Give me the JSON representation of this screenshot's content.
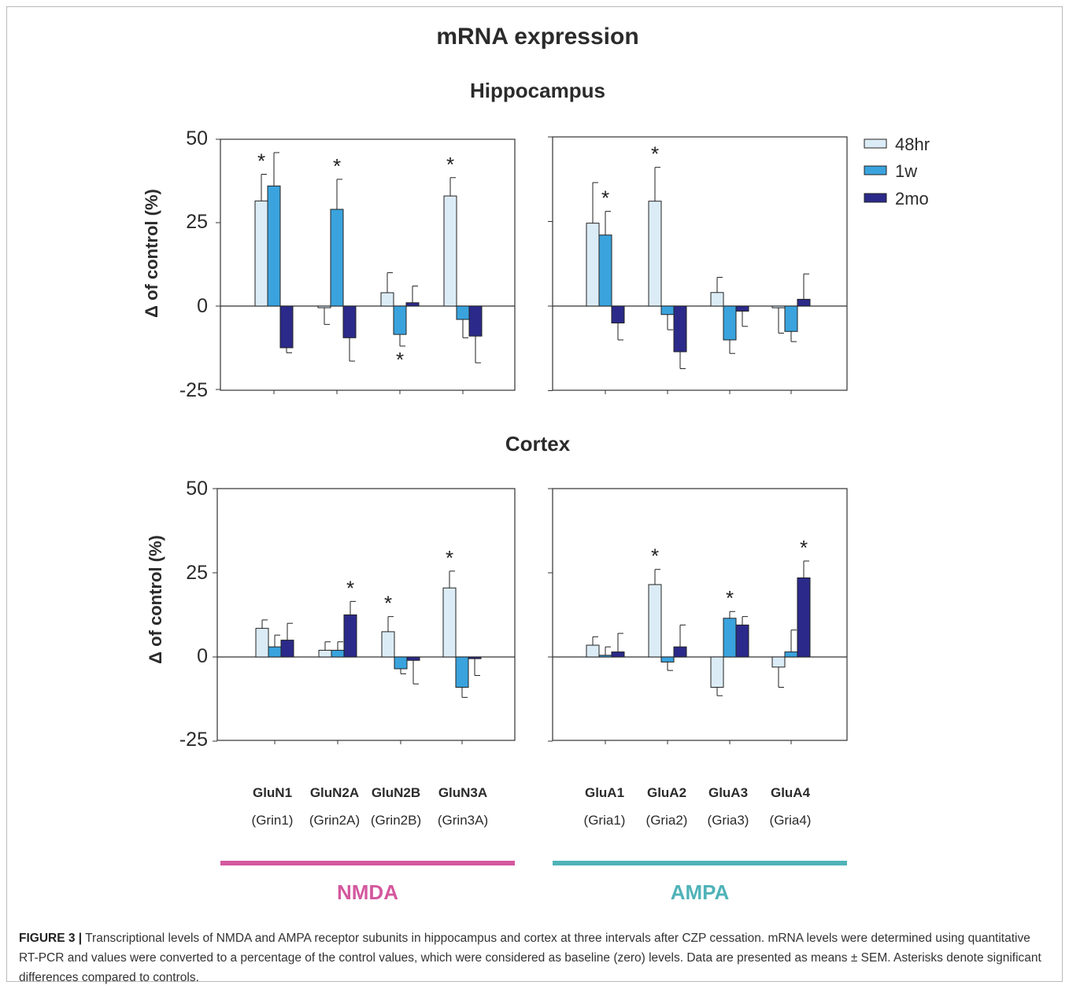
{
  "figure": {
    "title": "mRNA expression",
    "caption_label": "FIGURE 3 |",
    "caption_text": " Transcriptional levels of NMDA and AMPA receptor subunits in hippocampus and cortex at three intervals after CZP cessation. mRNA levels were determined using quantitative RT-PCR and values were converted to a percentage of the control values, which were considered as baseline (zero) levels. Data are presented as means ± SEM. Asterisks denote significant differences compared to controls.",
    "colors": {
      "48hr": "#dcecf7",
      "1w": "#3aa3dd",
      "2mo": "#2b2a8a",
      "nmda": "#d4589e",
      "ampa": "#4fb3b8"
    },
    "groups": [
      {
        "label": "NMDA",
        "color": "#d4589e"
      },
      {
        "label": "AMPA",
        "color": "#4fb3b8"
      }
    ]
  },
  "chart_data": {
    "type": "bar",
    "ylabel": "Δ of control (%)",
    "ylim": [
      -25,
      50
    ],
    "yticks": [
      "50",
      "25",
      "0",
      "-25"
    ],
    "series_names": [
      "48hr",
      "1w",
      "2mo"
    ],
    "legend_position": "top-right",
    "categories_nmda": [
      {
        "name": "GluN1",
        "gene": "(Grin1)"
      },
      {
        "name": "GluN2A",
        "gene": "(Grin2A)"
      },
      {
        "name": "GluN2B",
        "gene": "(Grin2B)"
      },
      {
        "name": "GluN3A",
        "gene": "(Grin3A)"
      }
    ],
    "categories_ampa": [
      {
        "name": "GluA1",
        "gene": "(Gria1)"
      },
      {
        "name": "GluA2",
        "gene": "(Gria2)"
      },
      {
        "name": "GluA3",
        "gene": "(Gria3)"
      },
      {
        "name": "GluA4",
        "gene": "(Gria4)"
      }
    ],
    "panels": [
      {
        "region": "Hippocampus",
        "group": "NMDA",
        "bars": [
          [
            [
              31.5,
              8,
              "*"
            ],
            [
              36,
              10,
              ""
            ],
            [
              -12.5,
              1.5,
              ""
            ]
          ],
          [
            [
              -0.5,
              5,
              ""
            ],
            [
              29,
              9,
              "*"
            ],
            [
              -9.5,
              7,
              ""
            ]
          ],
          [
            [
              4,
              6,
              ""
            ],
            [
              -8.5,
              3.5,
              "*"
            ],
            [
              1,
              5,
              ""
            ]
          ],
          [
            [
              33,
              5.5,
              "*"
            ],
            [
              -4,
              5.5,
              ""
            ],
            [
              -9,
              8,
              ""
            ]
          ]
        ]
      },
      {
        "region": "Hippocampus",
        "group": "AMPA",
        "bars": [
          [
            [
              24.5,
              12,
              ""
            ],
            [
              21,
              7,
              "*"
            ],
            [
              -5,
              5,
              ""
            ]
          ],
          [
            [
              31,
              10,
              "*"
            ],
            [
              -2.5,
              4.5,
              ""
            ],
            [
              -13.5,
              5,
              ""
            ]
          ],
          [
            [
              4,
              4.5,
              ""
            ],
            [
              -10,
              4,
              ""
            ],
            [
              -1.5,
              4.5,
              ""
            ]
          ],
          [
            [
              -0.5,
              7.5,
              ""
            ],
            [
              -7.5,
              3,
              ""
            ],
            [
              2,
              7.5,
              ""
            ]
          ]
        ]
      },
      {
        "region": "Cortex",
        "group": "NMDA",
        "bars": [
          [
            [
              8.5,
              2.5,
              ""
            ],
            [
              3,
              3.5,
              ""
            ],
            [
              5,
              5,
              ""
            ]
          ],
          [
            [
              2,
              2.5,
              ""
            ],
            [
              2,
              2.5,
              ""
            ],
            [
              12.5,
              4,
              "*"
            ]
          ],
          [
            [
              7.5,
              4.5,
              "*"
            ],
            [
              -3.5,
              1.5,
              ""
            ],
            [
              -1,
              7,
              ""
            ]
          ],
          [
            [
              20.5,
              5,
              "*"
            ],
            [
              -9,
              3,
              ""
            ],
            [
              -0.5,
              5,
              ""
            ]
          ]
        ]
      },
      {
        "region": "Cortex",
        "group": "AMPA",
        "bars": [
          [
            [
              3.5,
              2.5,
              ""
            ],
            [
              0.5,
              2.5,
              ""
            ],
            [
              1.5,
              5.5,
              ""
            ]
          ],
          [
            [
              21.5,
              4.5,
              "*"
            ],
            [
              -1.5,
              2.5,
              ""
            ],
            [
              3,
              6.5,
              ""
            ]
          ],
          [
            [
              -9,
              2.5,
              ""
            ],
            [
              11.5,
              2,
              "*"
            ],
            [
              9.5,
              2.5,
              ""
            ]
          ],
          [
            [
              -3,
              6,
              ""
            ],
            [
              1.5,
              6.5,
              ""
            ],
            [
              23.5,
              5,
              "*"
            ]
          ]
        ]
      }
    ]
  }
}
